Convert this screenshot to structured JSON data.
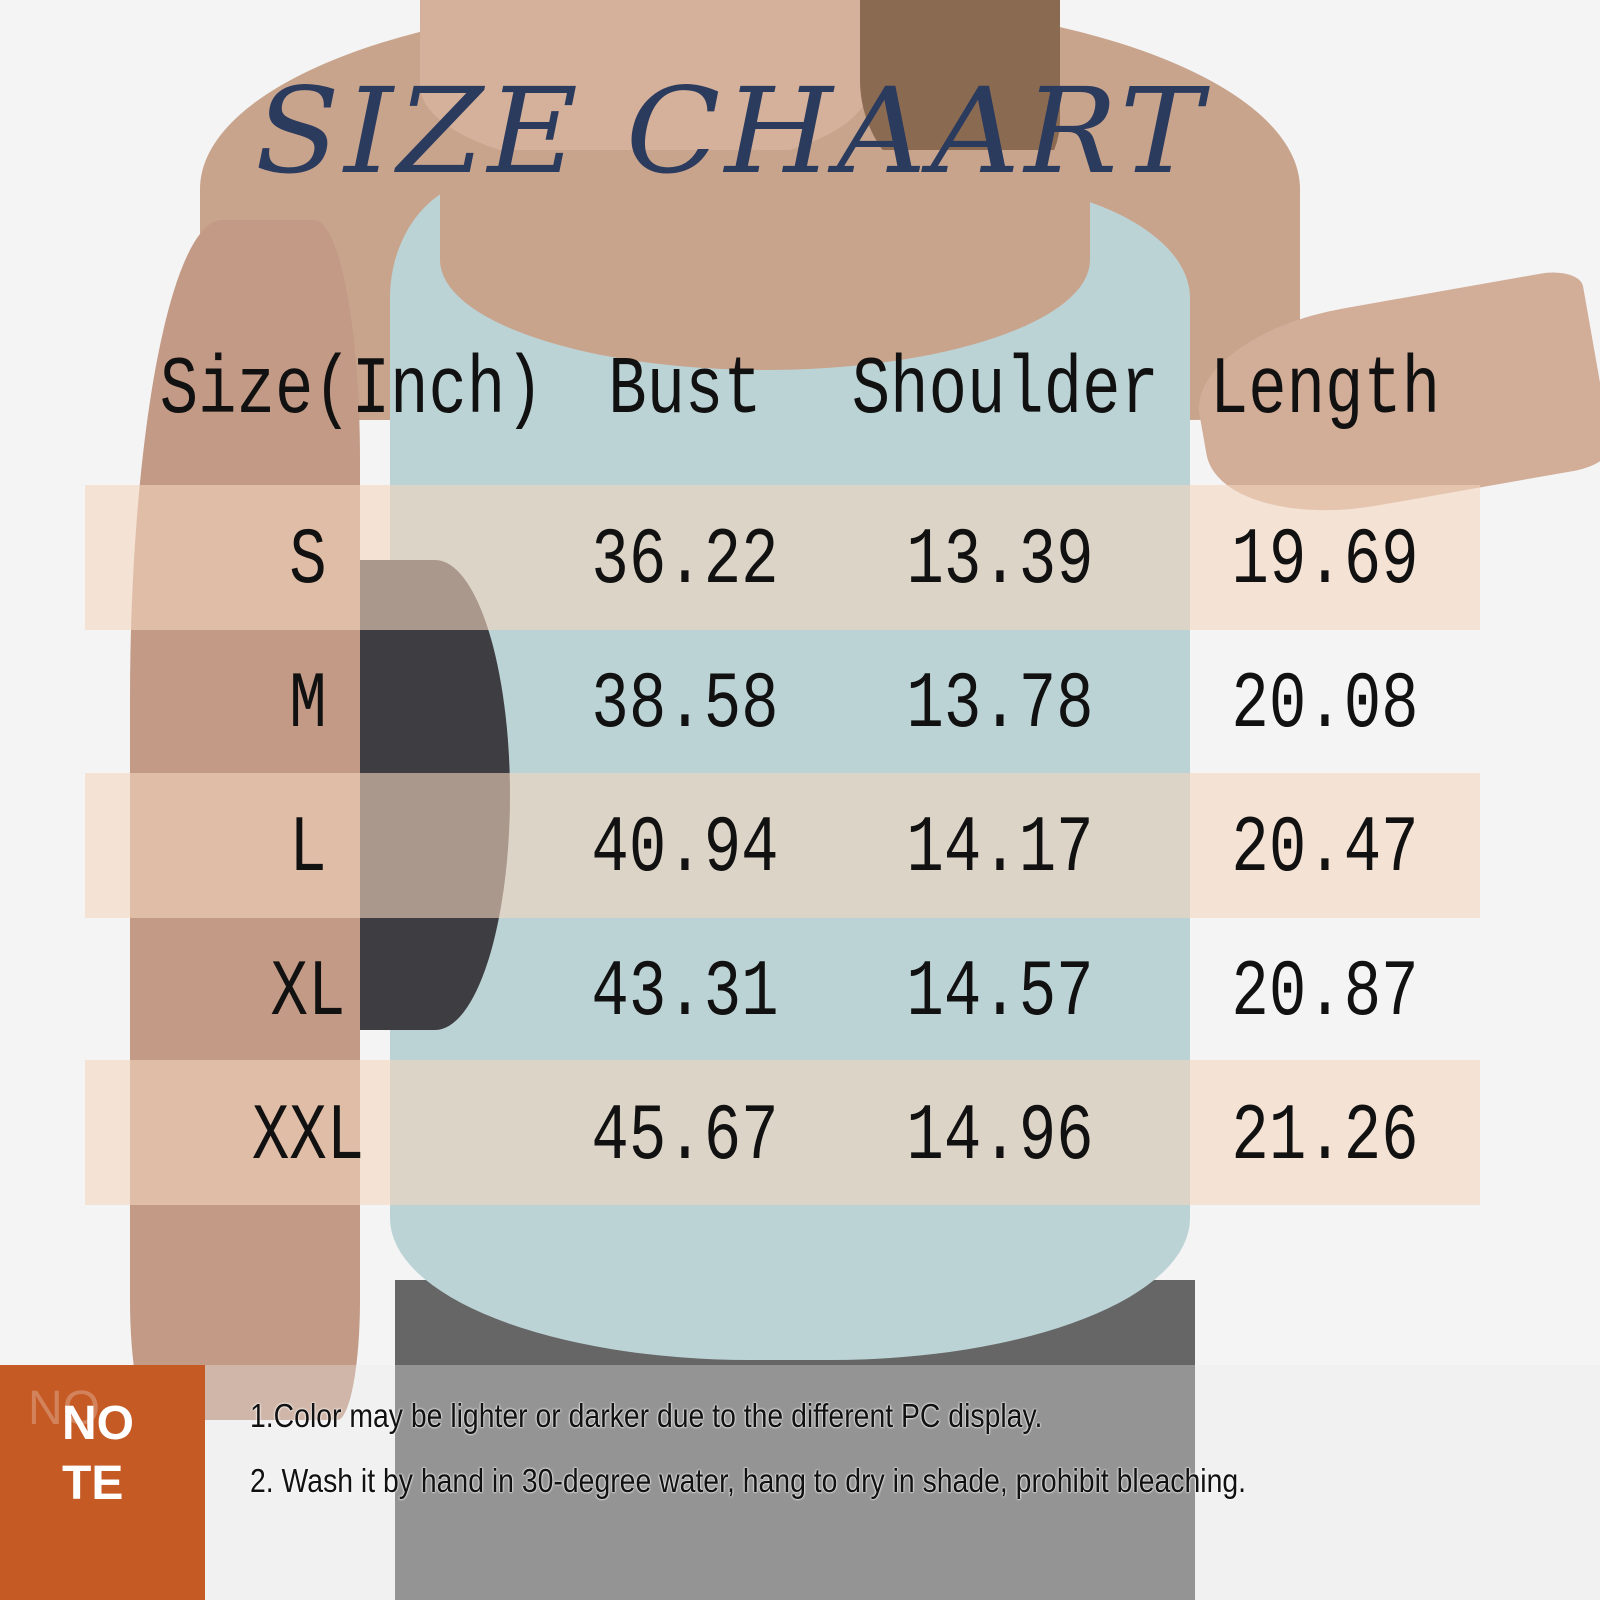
{
  "title": "SIZE CHAART",
  "table": {
    "headers": [
      "Size(Inch)",
      "Bust",
      "Shoulder",
      "Length"
    ],
    "rows": [
      [
        "S",
        "36.22",
        "13.39",
        "19.69"
      ],
      [
        "M",
        "38.58",
        "13.78",
        "20.08"
      ],
      [
        "L",
        "40.94",
        "14.17",
        "20.47"
      ],
      [
        "XL",
        "43.31",
        "14.57",
        "20.87"
      ],
      [
        "XXL",
        "45.67",
        "14.96",
        "21.26"
      ]
    ]
  },
  "note": {
    "label_line1": "NO",
    "label_line2": "TE",
    "items": [
      "1.Color may be lighter or darker due to the different PC display.",
      "2. Wash it by hand in 30-degree water, hang to dry in shade, prohibit bleaching."
    ]
  },
  "colors": {
    "title": "#2b3b5e",
    "band": "#f3d6be",
    "note_panel": "#c55a25",
    "tank_top": "#bcd3d6"
  }
}
